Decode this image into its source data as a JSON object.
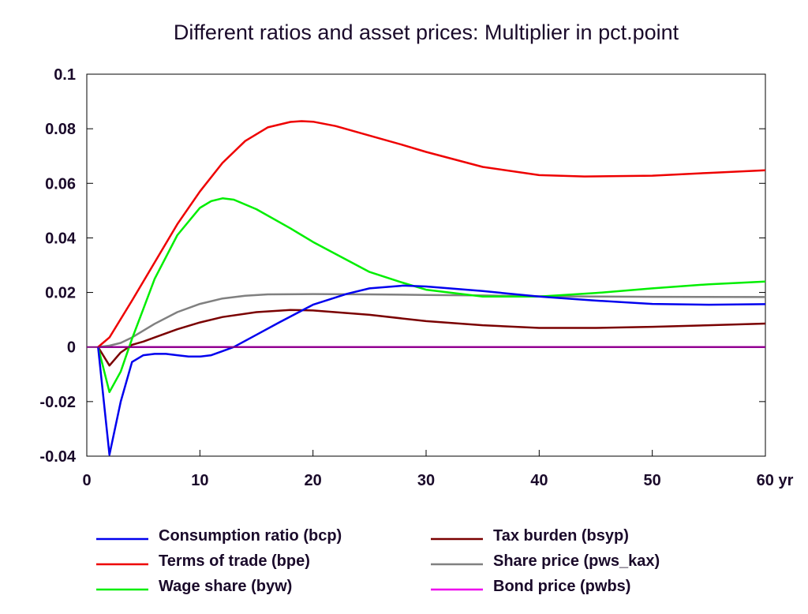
{
  "chart_data": {
    "type": "line",
    "title": "Different ratios and asset prices: Multiplier in pct.point",
    "xlim": [
      0,
      60
    ],
    "ylim": [
      -0.04,
      0.1
    ],
    "x_ticks": [
      "0",
      "10",
      "20",
      "30",
      "40",
      "50",
      "60 yr"
    ],
    "y_ticks": [
      "0.1",
      "0.08",
      "0.06",
      "0.04",
      "0.02",
      "0",
      "-0.02",
      "-0.04"
    ],
    "grid": false,
    "legend_position": "bottom",
    "series": [
      {
        "name": "Consumption ratio (bcp)",
        "color": "#0000ee",
        "x": [
          1,
          2,
          3,
          4,
          5,
          6,
          7,
          8,
          9,
          10,
          11,
          12,
          13,
          15,
          17,
          20,
          23,
          25,
          28,
          30,
          35,
          40,
          45,
          50,
          55,
          60
        ],
        "y": [
          0,
          -0.0395,
          -0.02,
          -0.0055,
          -0.003,
          -0.0025,
          -0.0025,
          -0.003,
          -0.0035,
          -0.0035,
          -0.003,
          -0.0015,
          0,
          0.0045,
          0.009,
          0.0155,
          0.0195,
          0.0215,
          0.0225,
          0.0222,
          0.0205,
          0.0185,
          0.017,
          0.0158,
          0.0155,
          0.0157
        ]
      },
      {
        "name": "Terms of trade (bpe)",
        "color": "#ee0000",
        "x": [
          1,
          2,
          4,
          6,
          8,
          10,
          12,
          14,
          16,
          18,
          19,
          20,
          22,
          25,
          28,
          30,
          35,
          40,
          44,
          50,
          55,
          60
        ],
        "y": [
          0,
          0.0035,
          0.017,
          0.031,
          0.045,
          0.057,
          0.0675,
          0.0755,
          0.0805,
          0.0825,
          0.0828,
          0.0826,
          0.081,
          0.0775,
          0.074,
          0.0715,
          0.066,
          0.063,
          0.0625,
          0.0628,
          0.0638,
          0.0648
        ]
      },
      {
        "name": "Wage share (byw)",
        "color": "#00ee00",
        "x": [
          1,
          2,
          3,
          4,
          5,
          6,
          8,
          10,
          11,
          12,
          13,
          15,
          18,
          20,
          25,
          28,
          30,
          35,
          40,
          45,
          50,
          55,
          60
        ],
        "y": [
          0,
          -0.0165,
          -0.009,
          0.003,
          0.014,
          0.025,
          0.041,
          0.051,
          0.0535,
          0.0545,
          0.054,
          0.0505,
          0.0435,
          0.0385,
          0.0275,
          0.0235,
          0.021,
          0.0185,
          0.0185,
          0.0198,
          0.0215,
          0.023,
          0.024
        ]
      },
      {
        "name": "Tax burden (bsyp)",
        "color": "#7a0000",
        "x": [
          1,
          2,
          3,
          4,
          5,
          6,
          8,
          10,
          12,
          15,
          18,
          20,
          25,
          30,
          35,
          40,
          45,
          50,
          55,
          60
        ],
        "y": [
          0,
          -0.0068,
          -0.002,
          0.0008,
          0.002,
          0.0035,
          0.0065,
          0.009,
          0.011,
          0.0128,
          0.0136,
          0.0134,
          0.0118,
          0.0095,
          0.008,
          0.007,
          0.007,
          0.0074,
          0.008,
          0.0086
        ]
      },
      {
        "name": "Share price (pws_kax)",
        "color": "#808080",
        "x": [
          1,
          2,
          3,
          4,
          6,
          8,
          10,
          12,
          14,
          16,
          20,
          25,
          30,
          35,
          40,
          50,
          60
        ],
        "y": [
          0,
          0.0005,
          0.0015,
          0.0035,
          0.0085,
          0.0128,
          0.0158,
          0.0178,
          0.0188,
          0.0193,
          0.0194,
          0.0193,
          0.0191,
          0.0189,
          0.0186,
          0.0184,
          0.0183
        ]
      },
      {
        "name": "Bond price (pwbs)",
        "color": "#ee00ee",
        "x": [
          1,
          60
        ],
        "y": [
          0,
          0
        ]
      }
    ],
    "reference_line": {
      "y": 0,
      "color": "#800080"
    }
  }
}
